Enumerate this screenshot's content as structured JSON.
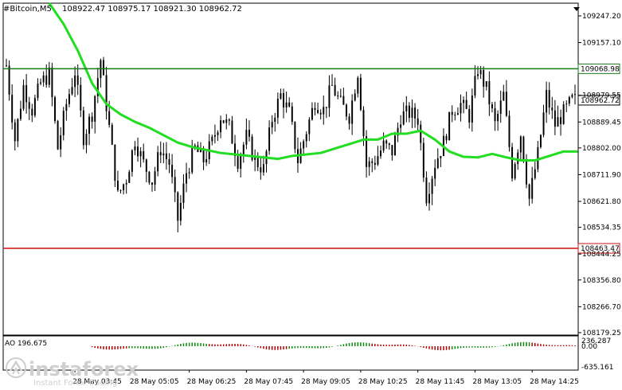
{
  "header": {
    "symbol": "#Bitcoin,M5",
    "ohlc": "108922.47 108975.17 108921.30 108962.72"
  },
  "indicator": {
    "name": "AO 196.675",
    "scale_labels": [
      "236.287",
      "0.00",
      "-635.161"
    ],
    "pos_color": "#0a8a0a",
    "neg_color": "#b00000"
  },
  "brand": {
    "name": "instaforex",
    "tagline": "Instant Forex Trading"
  },
  "chart_data": {
    "type": "candlestick",
    "y_ticks": [
      "109247.20",
      "109157.10",
      "108979.55",
      "108889.45",
      "108802.00",
      "108711.90",
      "108621.80",
      "108534.35",
      "108444.25",
      "108356.80",
      "108266.70",
      "108179.25"
    ],
    "y_tick_values": [
      109247.2,
      109157.1,
      108979.55,
      108889.45,
      108802.0,
      108711.9,
      108621.8,
      108534.35,
      108444.25,
      108356.8,
      108266.7,
      108179.25
    ],
    "ylim": [
      108171,
      109290
    ],
    "x_labels": [
      "28 May 03:45",
      "28 May 05:05",
      "28 May 06:25",
      "28 May 07:45",
      "28 May 09:05",
      "28 May 10:25",
      "28 May 11:45",
      "28 May 13:05",
      "28 May 14:25"
    ],
    "x_label_positions": [
      24,
      44,
      64,
      84,
      104,
      124,
      144,
      164,
      184
    ],
    "levels": [
      {
        "value": 109068.98,
        "label": "109068.98",
        "color": "#1a7a1a"
      },
      {
        "value": 108463.47,
        "label": "108463.47",
        "color": "#cc1111"
      }
    ],
    "current_price": {
      "value": 108962.72,
      "label": "108962.72"
    },
    "ma": {
      "color": "#22dd22",
      "x": [
        15,
        20,
        25,
        30,
        35,
        40,
        45,
        50,
        55,
        60,
        65,
        70,
        75,
        80,
        85,
        90,
        95,
        100,
        105,
        110,
        115,
        120,
        125,
        130,
        135,
        140,
        145,
        150,
        155,
        160,
        165,
        170,
        175,
        180,
        185,
        190,
        195,
        200
      ],
      "values": [
        109290,
        109220,
        109130,
        109020,
        108950,
        108915,
        108890,
        108870,
        108845,
        108820,
        108805,
        108795,
        108785,
        108780,
        108775,
        108770,
        108765,
        108775,
        108780,
        108785,
        108800,
        108815,
        108830,
        108830,
        108850,
        108850,
        108860,
        108830,
        108790,
        108772,
        108770,
        108782,
        108770,
        108760,
        108760,
        108775,
        108790,
        108790
      ]
    },
    "candles": {
      "count": 200,
      "x": [
        0,
        3,
        6,
        9,
        12,
        15,
        18,
        21,
        24,
        27,
        30,
        33,
        36,
        39,
        42,
        45,
        48,
        51,
        54,
        57,
        60,
        63,
        66,
        69,
        72,
        75,
        78,
        81,
        84,
        87,
        90,
        93,
        96,
        99,
        102,
        105,
        108,
        111,
        114,
        117,
        120,
        123,
        126,
        129,
        132,
        135,
        138,
        141,
        144,
        147,
        150,
        153,
        156,
        159,
        162,
        165,
        168,
        171,
        174,
        177,
        180,
        183,
        186,
        189,
        192,
        195,
        198
      ],
      "values": [
        109080,
        108830,
        109010,
        108930,
        109020,
        109050,
        108800,
        108950,
        109060,
        108840,
        108920,
        109100,
        108870,
        108640,
        108700,
        108830,
        108750,
        108690,
        108800,
        108750,
        108560,
        108720,
        108800,
        108760,
        108820,
        108910,
        108870,
        108760,
        108840,
        108760,
        108730,
        108900,
        108980,
        108920,
        108760,
        108860,
        108960,
        108930,
        109010,
        108950,
        108910,
        109060,
        108740,
        108760,
        108810,
        108790,
        108910,
        108920,
        108900,
        108640,
        108750,
        108820,
        108930,
        108950,
        108910,
        109070,
        109000,
        108880,
        108980,
        108720,
        108850,
        108630,
        108780,
        108980,
        108880,
        108920,
        108962.72
      ]
    }
  }
}
